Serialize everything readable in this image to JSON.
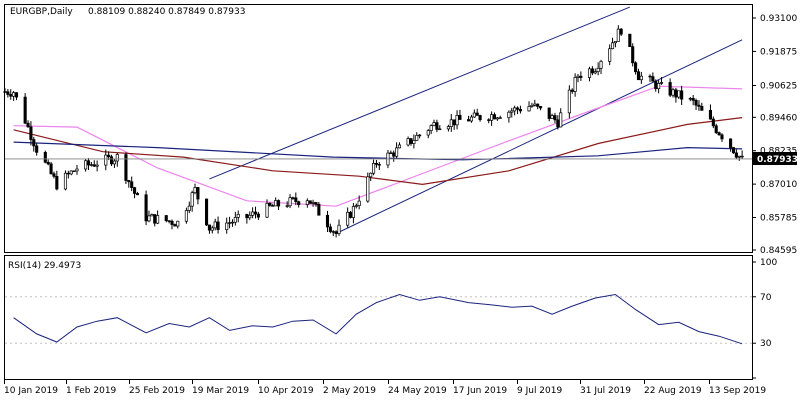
{
  "main_panel": {
    "symbol_label": "EURGBP,Daily",
    "ohlc_label": "0.88109 0.88240 0.87849 0.87933",
    "current_price_label": "0.87933",
    "price_ticks": [
      "0.93100",
      "0.91875",
      "0.90625",
      "0.89460",
      "0.88235",
      "0.87010",
      "0.85785",
      "0.84595"
    ]
  },
  "rsi_panel": {
    "label": "RSI(14) 29.4973",
    "ticks": [
      "100",
      "70",
      "30",
      "0"
    ]
  },
  "time_axis": {
    "labels": [
      "10 Jan 2019",
      "1 Feb 2019",
      "25 Feb 2019",
      "19 Mar 2019",
      "10 Apr 2019",
      "2 May 2019",
      "24 May 2019",
      "17 Jun 2019",
      "9 Jul 2019",
      "31 Jul 2019",
      "22 Aug 2019",
      "13 Sep 2019"
    ]
  },
  "chart_data": {
    "type": "candlestick",
    "symbol": "EURGBP",
    "timeframe": "Daily",
    "last_bar": {
      "open": 0.88109,
      "high": 0.8824,
      "low": 0.87849,
      "close": 0.87933
    },
    "ylim": [
      0.84595,
      0.931
    ],
    "closing_path": [
      {
        "date": "2019-01-10",
        "close": 0.904
      },
      {
        "date": "2019-01-18",
        "close": 0.883
      },
      {
        "date": "2019-01-25",
        "close": 0.87
      },
      {
        "date": "2019-02-01",
        "close": 0.876
      },
      {
        "date": "2019-02-15",
        "close": 0.88
      },
      {
        "date": "2019-02-25",
        "close": 0.858
      },
      {
        "date": "2019-03-08",
        "close": 0.856
      },
      {
        "date": "2019-03-14",
        "close": 0.868
      },
      {
        "date": "2019-03-19",
        "close": 0.854
      },
      {
        "date": "2019-04-01",
        "close": 0.858
      },
      {
        "date": "2019-04-10",
        "close": 0.862
      },
      {
        "date": "2019-04-22",
        "close": 0.865
      },
      {
        "date": "2019-05-02",
        "close": 0.852
      },
      {
        "date": "2019-05-08",
        "close": 0.861
      },
      {
        "date": "2019-05-16",
        "close": 0.878
      },
      {
        "date": "2019-05-24",
        "close": 0.883
      },
      {
        "date": "2019-06-05",
        "close": 0.892
      },
      {
        "date": "2019-06-17",
        "close": 0.894
      },
      {
        "date": "2019-06-28",
        "close": 0.896
      },
      {
        "date": "2019-07-09",
        "close": 0.899
      },
      {
        "date": "2019-07-18",
        "close": 0.893
      },
      {
        "date": "2019-07-25",
        "close": 0.91
      },
      {
        "date": "2019-07-31",
        "close": 0.913
      },
      {
        "date": "2019-08-09",
        "close": 0.927
      },
      {
        "date": "2019-08-15",
        "close": 0.91
      },
      {
        "date": "2019-08-22",
        "close": 0.906
      },
      {
        "date": "2019-09-03",
        "close": 0.9
      },
      {
        "date": "2019-09-13",
        "close": 0.888
      },
      {
        "date": "2019-09-20",
        "close": 0.879
      }
    ],
    "moving_averages": [
      {
        "color": "#ee82ee",
        "points": [
          {
            "date": "2019-01-10",
            "value": 0.8915
          },
          {
            "date": "2019-02-01",
            "value": 0.891
          },
          {
            "date": "2019-03-01",
            "value": 0.876
          },
          {
            "date": "2019-04-01",
            "value": 0.864
          },
          {
            "date": "2019-05-02",
            "value": 0.862
          },
          {
            "date": "2019-06-01",
            "value": 0.874
          },
          {
            "date": "2019-07-01",
            "value": 0.886
          },
          {
            "date": "2019-08-01",
            "value": 0.898
          },
          {
            "date": "2019-08-22",
            "value": 0.906
          },
          {
            "date": "2019-09-20",
            "value": 0.905
          }
        ]
      },
      {
        "color": "#8b1a1a",
        "points": [
          {
            "date": "2019-01-10",
            "value": 0.89
          },
          {
            "date": "2019-02-10",
            "value": 0.882
          },
          {
            "date": "2019-03-10",
            "value": 0.88
          },
          {
            "date": "2019-04-10",
            "value": 0.875
          },
          {
            "date": "2019-05-10",
            "value": 0.873
          },
          {
            "date": "2019-06-01",
            "value": 0.87
          },
          {
            "date": "2019-07-01",
            "value": 0.875
          },
          {
            "date": "2019-08-01",
            "value": 0.885
          },
          {
            "date": "2019-09-01",
            "value": 0.892
          },
          {
            "date": "2019-09-20",
            "value": 0.8945
          }
        ]
      },
      {
        "color": "#1a237e",
        "points": [
          {
            "date": "2019-01-10",
            "value": 0.8855
          },
          {
            "date": "2019-03-01",
            "value": 0.8835
          },
          {
            "date": "2019-05-01",
            "value": 0.88
          },
          {
            "date": "2019-06-15",
            "value": 0.879
          },
          {
            "date": "2019-08-01",
            "value": 0.8805
          },
          {
            "date": "2019-09-01",
            "value": 0.8835
          },
          {
            "date": "2019-09-20",
            "value": 0.883
          }
        ]
      }
    ],
    "trend_channel": {
      "color": "#1a237e",
      "lower": [
        {
          "date": "2019-05-02",
          "value": 0.852
        },
        {
          "date": "2019-09-20",
          "value": 0.923
        }
      ],
      "upper": [
        {
          "date": "2019-03-19",
          "value": 0.872
        },
        {
          "date": "2019-08-12",
          "value": 0.935
        }
      ]
    },
    "rsi": {
      "period": 14,
      "last": 29.4973,
      "ylim": [
        0,
        100
      ],
      "levels": [
        30,
        70
      ],
      "points": [
        {
          "date": "2019-01-10",
          "value": 52
        },
        {
          "date": "2019-01-18",
          "value": 38
        },
        {
          "date": "2019-01-25",
          "value": 31
        },
        {
          "date": "2019-02-01",
          "value": 44
        },
        {
          "date": "2019-02-08",
          "value": 49
        },
        {
          "date": "2019-02-15",
          "value": 52
        },
        {
          "date": "2019-02-25",
          "value": 39
        },
        {
          "date": "2019-03-05",
          "value": 47
        },
        {
          "date": "2019-03-12",
          "value": 44
        },
        {
          "date": "2019-03-19",
          "value": 52
        },
        {
          "date": "2019-03-26",
          "value": 41
        },
        {
          "date": "2019-04-03",
          "value": 45
        },
        {
          "date": "2019-04-10",
          "value": 44
        },
        {
          "date": "2019-04-17",
          "value": 49
        },
        {
          "date": "2019-04-24",
          "value": 50
        },
        {
          "date": "2019-05-02",
          "value": 38
        },
        {
          "date": "2019-05-09",
          "value": 55
        },
        {
          "date": "2019-05-16",
          "value": 65
        },
        {
          "date": "2019-05-24",
          "value": 72
        },
        {
          "date": "2019-05-31",
          "value": 67
        },
        {
          "date": "2019-06-07",
          "value": 70
        },
        {
          "date": "2019-06-17",
          "value": 65
        },
        {
          "date": "2019-06-25",
          "value": 63
        },
        {
          "date": "2019-07-02",
          "value": 61
        },
        {
          "date": "2019-07-09",
          "value": 62
        },
        {
          "date": "2019-07-16",
          "value": 55
        },
        {
          "date": "2019-07-23",
          "value": 62
        },
        {
          "date": "2019-07-31",
          "value": 69
        },
        {
          "date": "2019-08-07",
          "value": 72
        },
        {
          "date": "2019-08-14",
          "value": 59
        },
        {
          "date": "2019-08-22",
          "value": 46
        },
        {
          "date": "2019-08-29",
          "value": 48
        },
        {
          "date": "2019-09-05",
          "value": 40
        },
        {
          "date": "2019-09-12",
          "value": 36
        },
        {
          "date": "2019-09-20",
          "value": 29.5
        }
      ]
    }
  },
  "colors": {
    "background": "#ffffff",
    "candle": "#000000",
    "ma_violet": "#ee82ee",
    "ma_darkred": "#8b1a1a",
    "ma_navy": "#1a237e",
    "rsi_line": "#1a237e",
    "price_tag_bg": "#000000",
    "price_tag_fg": "#ffffff",
    "current_price_line": "#808080"
  }
}
